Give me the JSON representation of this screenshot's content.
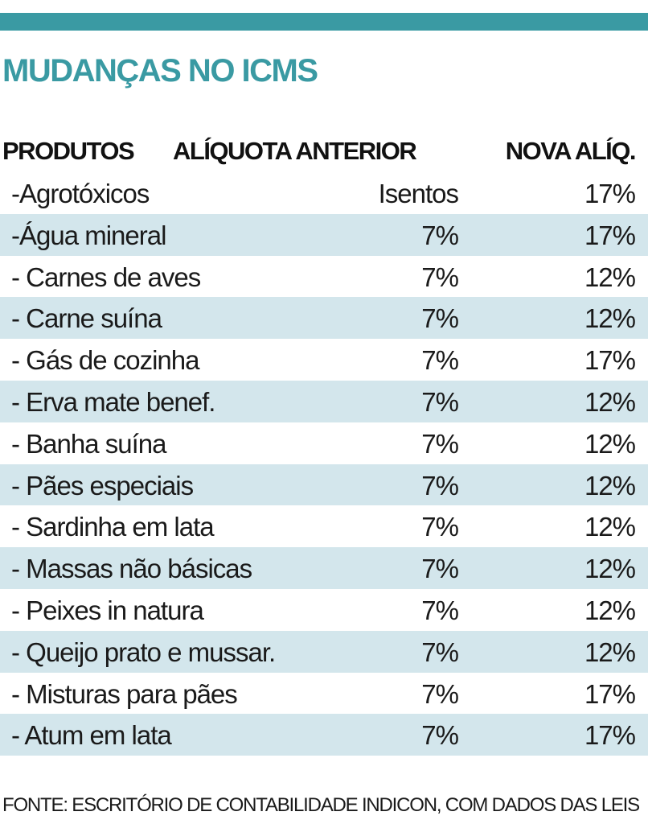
{
  "title": "MUDANÇAS NO ICMS",
  "colors": {
    "accent": "#3a9aa3",
    "row_shade": "#d3e6ec"
  },
  "table": {
    "headers": {
      "produtos": "PRODUTOS",
      "aliquota_anterior": "ALÍQUOTA ANTERIOR",
      "nova_aliquota": "NOVA ALÍQ."
    },
    "rows": [
      {
        "produto": "-Agrotóxicos",
        "anterior": "Isentos",
        "nova": "17%"
      },
      {
        "produto": "-Água mineral",
        "anterior": "7%",
        "nova": "17%"
      },
      {
        "produto": "- Carnes de aves",
        "anterior": "7%",
        "nova": "12%"
      },
      {
        "produto": "- Carne suína",
        "anterior": "7%",
        "nova": "12%"
      },
      {
        "produto": "- Gás de cozinha",
        "anterior": "7%",
        "nova": "17%"
      },
      {
        "produto": "- Erva mate benef.",
        "anterior": "7%",
        "nova": "12%"
      },
      {
        "produto": "- Banha suína",
        "anterior": "7%",
        "nova": "12%"
      },
      {
        "produto": "- Pães especiais",
        "anterior": "7%",
        "nova": "12%"
      },
      {
        "produto": "- Sardinha em lata",
        "anterior": "7%",
        "nova": "12%"
      },
      {
        "produto": "- Massas não básicas",
        "anterior": "7%",
        "nova": "12%"
      },
      {
        "produto": "- Peixes in natura",
        "anterior": "7%",
        "nova": "12%"
      },
      {
        "produto": "- Queijo prato e mussar.",
        "anterior": "7%",
        "nova": "12%"
      },
      {
        "produto": "- Misturas para pães",
        "anterior": "7%",
        "nova": "17%"
      },
      {
        "produto": "- Atum em lata",
        "anterior": "7%",
        "nova": "17%"
      }
    ]
  },
  "source": "FONTE: ESCRITÓRIO DE CONTABILIDADE INDICON, COM DADOS DAS LEIS"
}
